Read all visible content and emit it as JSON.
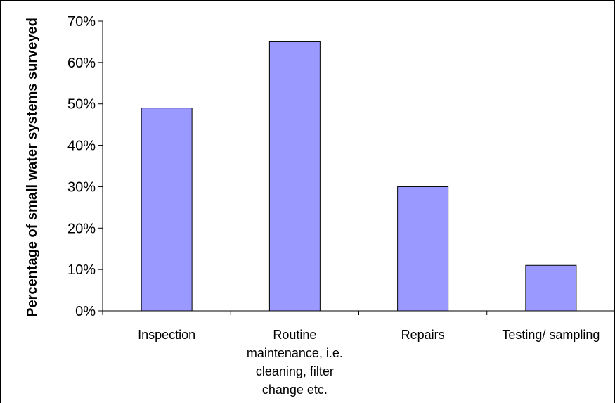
{
  "chart_data": {
    "type": "bar",
    "title": "",
    "xlabel": "",
    "ylabel": "Percentage of small water systems surveyed",
    "categories": [
      [
        "Inspection"
      ],
      [
        "Routine",
        "maintenance, i.e.",
        "cleaning, filter",
        "change etc."
      ],
      [
        "Repairs"
      ],
      [
        "Testing/ sampling"
      ]
    ],
    "values": [
      49,
      65,
      30,
      11
    ],
    "ylim": [
      0,
      70
    ],
    "yticks": [
      0,
      10,
      20,
      30,
      40,
      50,
      60,
      70
    ],
    "ytick_labels": [
      "0%",
      "10%",
      "20%",
      "30%",
      "40%",
      "50%",
      "60%",
      "70%"
    ],
    "grid": false,
    "legend": "none",
    "bar_color": "#9999ff",
    "bar_edge_color": "#000000"
  }
}
